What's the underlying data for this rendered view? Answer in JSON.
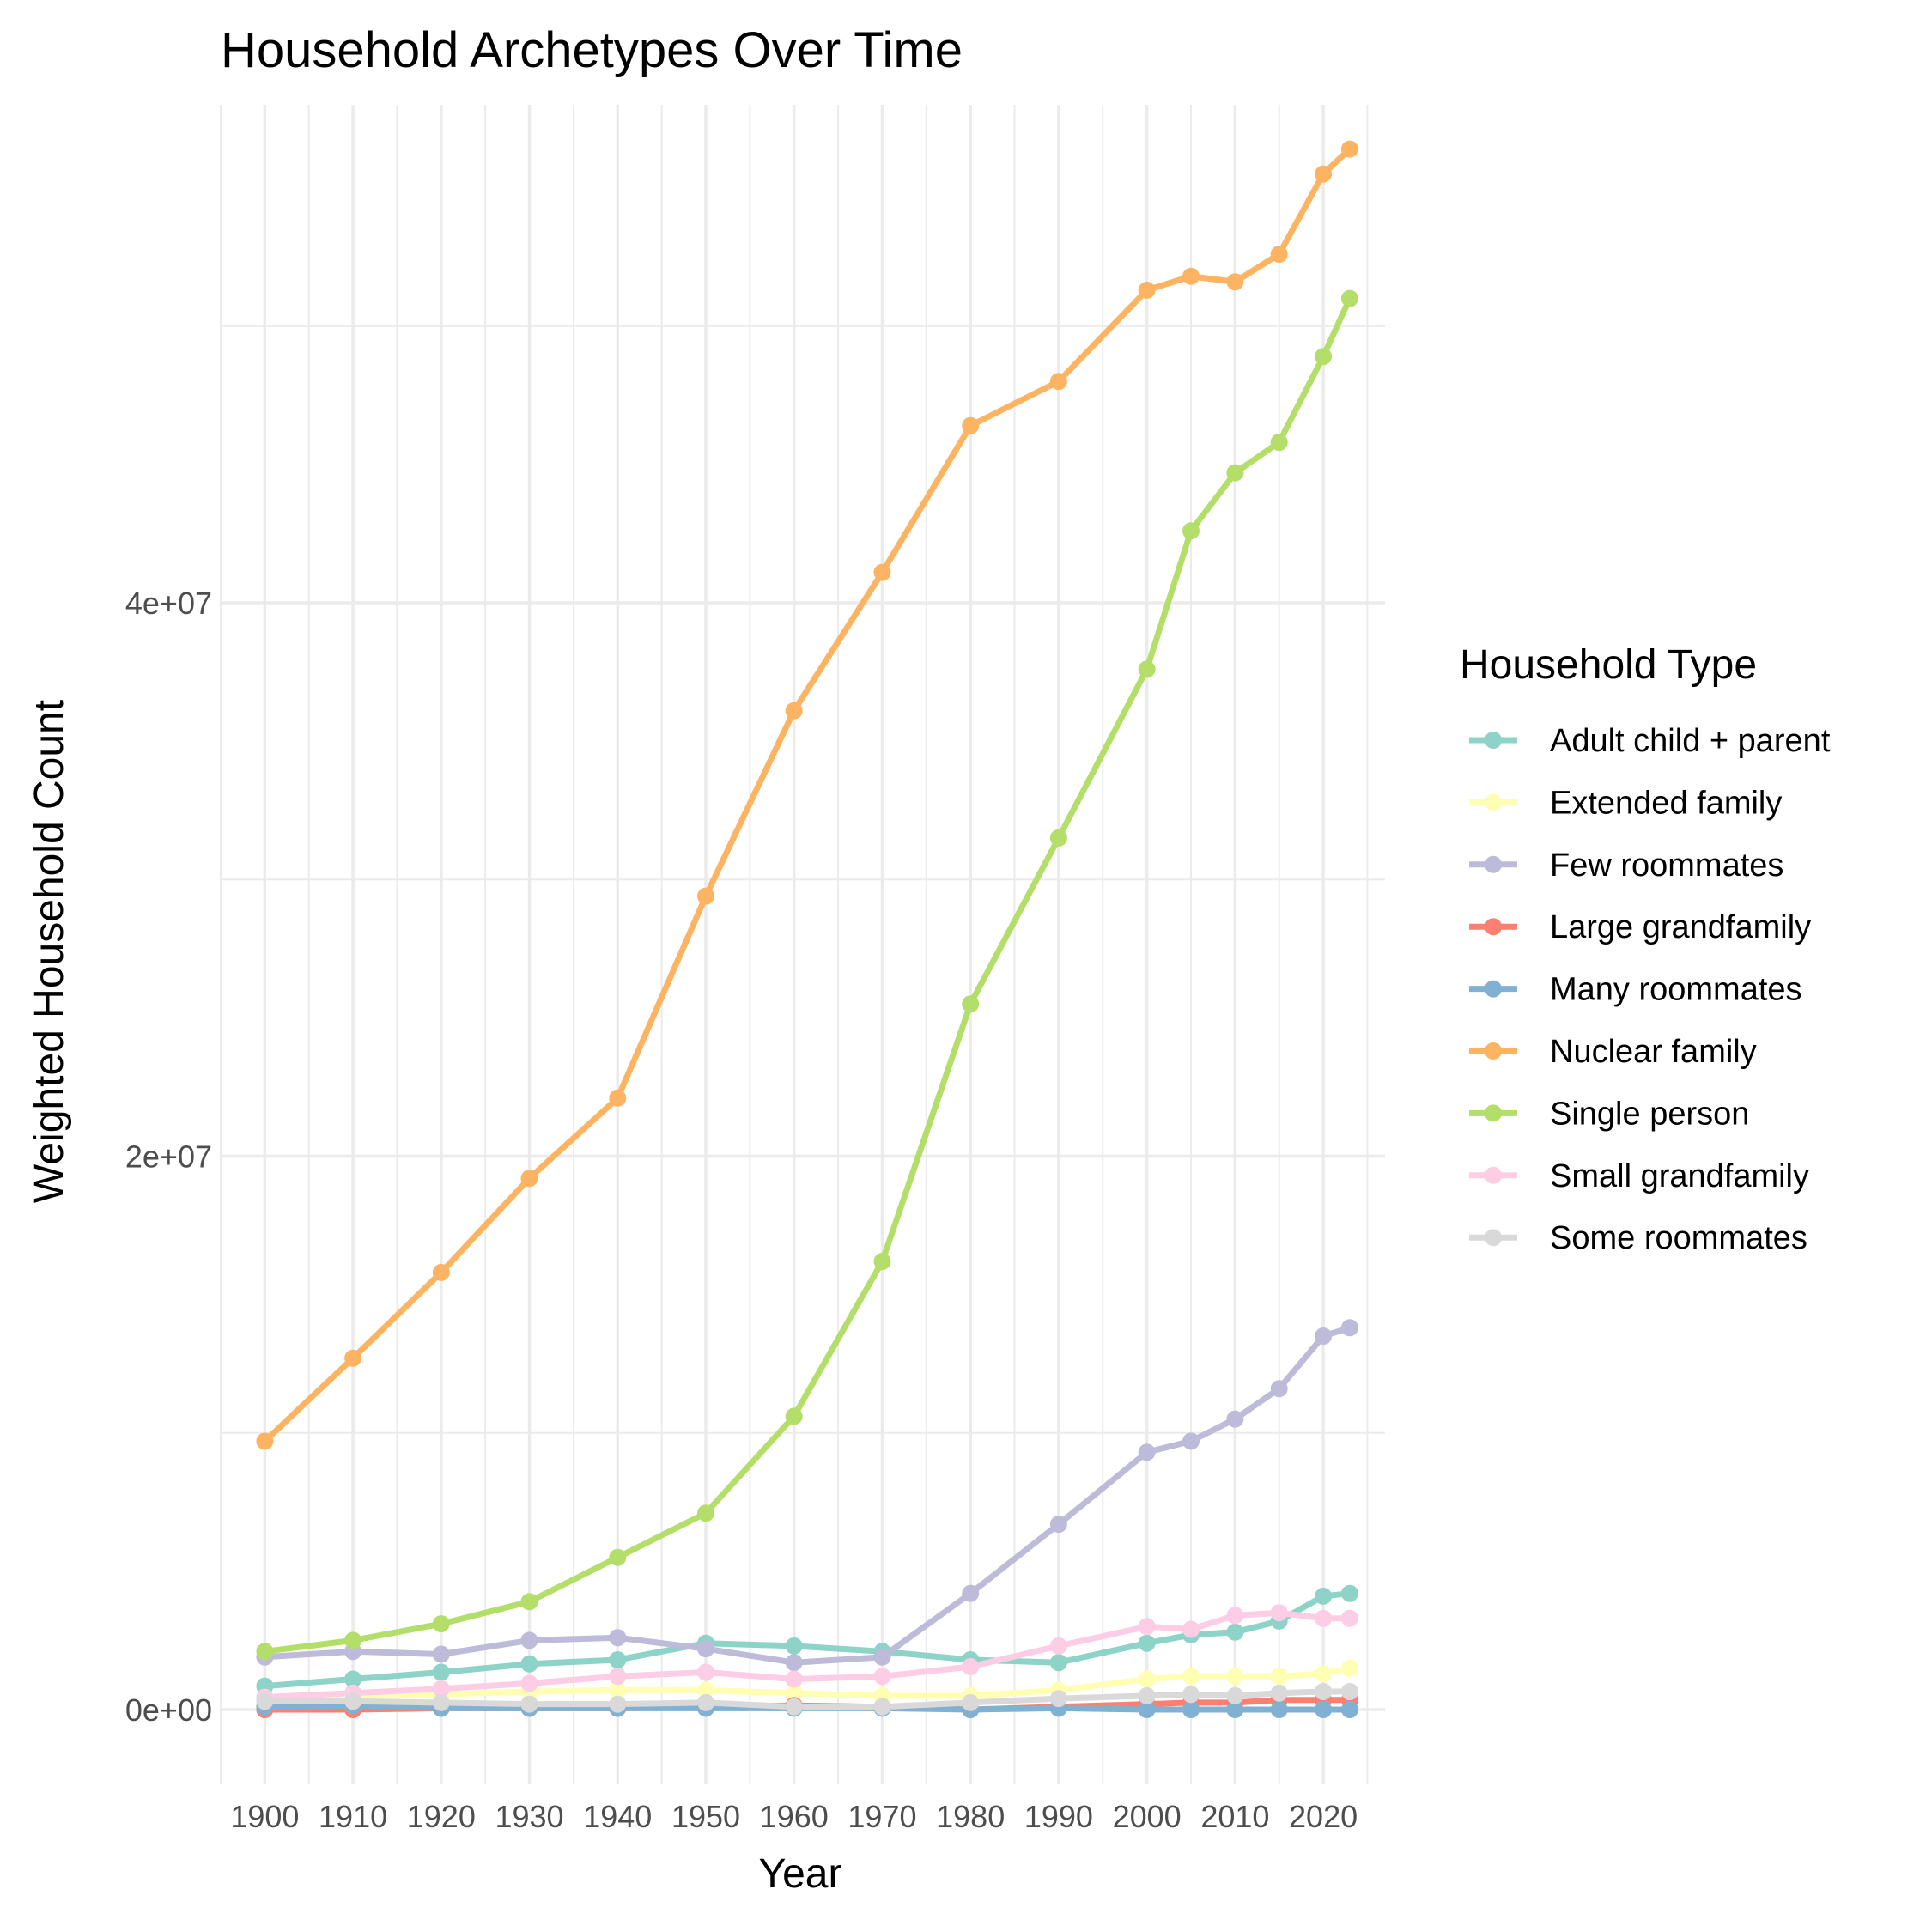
{
  "chart_data": {
    "type": "line",
    "title": "Household Archetypes Over Time",
    "xlabel": "Year",
    "ylabel": "Weighted Household Count",
    "xlim": [
      1895,
      2027
    ],
    "ylim": [
      -2700000,
      58000000
    ],
    "x_ticks": [
      1900,
      1910,
      1920,
      1930,
      1940,
      1950,
      1960,
      1970,
      1980,
      1990,
      2000,
      2010,
      2020
    ],
    "x_tick_labels": [
      "1900",
      "1910",
      "1920",
      "1930",
      "1940",
      "1950",
      "1960",
      "1970",
      "1980",
      "1990",
      "2000",
      "2010",
      "2020"
    ],
    "y_ticks": [
      0,
      20000000,
      40000000
    ],
    "y_tick_labels": [
      "0e+00",
      "2e+07",
      "4e+07"
    ],
    "grid": true,
    "legend": {
      "title": "Household Type",
      "position": "right"
    },
    "x": [
      1900,
      1910,
      1920,
      1930,
      1940,
      1950,
      1960,
      1970,
      1980,
      1990,
      2000,
      2005,
      2010,
      2015,
      2020,
      2023
    ],
    "series": [
      {
        "name": "Adult child + parent",
        "color": "#8dd3c7",
        "points": [
          [
            1900,
            850000
          ],
          [
            1910,
            1100000
          ],
          [
            1920,
            1350000
          ],
          [
            1930,
            1650000
          ],
          [
            1940,
            1800000
          ],
          [
            1950,
            2400000
          ],
          [
            1960,
            2300000
          ],
          [
            1970,
            2100000
          ],
          [
            1980,
            1800000
          ],
          [
            1990,
            1700000
          ],
          [
            2000,
            2400000
          ],
          [
            2005,
            2700000
          ],
          [
            2010,
            2800000
          ],
          [
            2015,
            3200000
          ],
          [
            2020,
            4100000
          ],
          [
            2023,
            4200000
          ]
        ]
      },
      {
        "name": "Extended family",
        "color": "#ffffb3",
        "points": [
          [
            1900,
            400000
          ],
          [
            1910,
            500000
          ],
          [
            1920,
            550000
          ],
          [
            1930,
            650000
          ],
          [
            1940,
            700000
          ],
          [
            1950,
            700000
          ],
          [
            1960,
            600000
          ],
          [
            1970,
            500000
          ],
          [
            1980,
            500000
          ],
          [
            1990,
            700000
          ],
          [
            2000,
            1100000
          ],
          [
            2005,
            1200000
          ],
          [
            2010,
            1200000
          ],
          [
            2015,
            1200000
          ],
          [
            2020,
            1300000
          ],
          [
            2023,
            1500000
          ]
        ]
      },
      {
        "name": "Few roommates",
        "color": "#bebada",
        "points": [
          [
            1900,
            1900000
          ],
          [
            1910,
            2100000
          ],
          [
            1920,
            2000000
          ],
          [
            1930,
            2500000
          ],
          [
            1940,
            2600000
          ],
          [
            1950,
            2200000
          ],
          [
            1960,
            1700000
          ],
          [
            1970,
            1900000
          ],
          [
            1980,
            4200000
          ],
          [
            1990,
            6700000
          ],
          [
            2000,
            9300000
          ],
          [
            2005,
            9700000
          ],
          [
            2010,
            10500000
          ],
          [
            2015,
            11600000
          ],
          [
            2020,
            13500000
          ],
          [
            2023,
            13800000
          ]
        ]
      },
      {
        "name": "Large grandfamily",
        "color": "#fb8072",
        "points": [
          [
            1900,
            0
          ],
          [
            1910,
            0
          ],
          [
            1920,
            50000
          ],
          [
            1930,
            50000
          ],
          [
            1940,
            50000
          ],
          [
            1950,
            100000
          ],
          [
            1960,
            150000
          ],
          [
            1970,
            100000
          ],
          [
            1980,
            0
          ],
          [
            1990,
            100000
          ],
          [
            2000,
            200000
          ],
          [
            2005,
            250000
          ],
          [
            2010,
            250000
          ],
          [
            2015,
            350000
          ],
          [
            2020,
            350000
          ],
          [
            2023,
            350000
          ]
        ]
      },
      {
        "name": "Many roommates",
        "color": "#80b1d3",
        "points": [
          [
            1900,
            100000
          ],
          [
            1910,
            150000
          ],
          [
            1920,
            50000
          ],
          [
            1930,
            50000
          ],
          [
            1940,
            50000
          ],
          [
            1950,
            50000
          ],
          [
            1960,
            50000
          ],
          [
            1970,
            50000
          ],
          [
            1980,
            0
          ],
          [
            1990,
            50000
          ],
          [
            2000,
            0
          ],
          [
            2005,
            0
          ],
          [
            2010,
            0
          ],
          [
            2015,
            0
          ],
          [
            2020,
            0
          ],
          [
            2023,
            0
          ]
        ]
      },
      {
        "name": "Nuclear family",
        "color": "#fdb462",
        "points": [
          [
            1900,
            9700000
          ],
          [
            1910,
            12700000
          ],
          [
            1920,
            15800000
          ],
          [
            1930,
            19200000
          ],
          [
            1940,
            22100000
          ],
          [
            1950,
            29400000
          ],
          [
            1960,
            36100000
          ],
          [
            1970,
            41100000
          ],
          [
            1980,
            46400000
          ],
          [
            1990,
            48000000
          ],
          [
            2000,
            51300000
          ],
          [
            2005,
            51800000
          ],
          [
            2010,
            51600000
          ],
          [
            2015,
            52600000
          ],
          [
            2020,
            55500000
          ],
          [
            2023,
            56400000
          ]
        ]
      },
      {
        "name": "Single person",
        "color": "#b3de69",
        "points": [
          [
            1900,
            2100000
          ],
          [
            1910,
            2500000
          ],
          [
            1920,
            3100000
          ],
          [
            1930,
            3900000
          ],
          [
            1940,
            5500000
          ],
          [
            1950,
            7100000
          ],
          [
            1960,
            10600000
          ],
          [
            1970,
            16200000
          ],
          [
            1980,
            25500000
          ],
          [
            1990,
            31500000
          ],
          [
            2000,
            37600000
          ],
          [
            2005,
            42600000
          ],
          [
            2010,
            44700000
          ],
          [
            2015,
            45800000
          ],
          [
            2020,
            48900000
          ],
          [
            2023,
            51000000
          ]
        ]
      },
      {
        "name": "Small grandfamily",
        "color": "#fccde5",
        "points": [
          [
            1900,
            450000
          ],
          [
            1910,
            600000
          ],
          [
            1920,
            750000
          ],
          [
            1930,
            950000
          ],
          [
            1940,
            1200000
          ],
          [
            1950,
            1350000
          ],
          [
            1960,
            1100000
          ],
          [
            1970,
            1200000
          ],
          [
            1980,
            1550000
          ],
          [
            1990,
            2300000
          ],
          [
            2000,
            3000000
          ],
          [
            2005,
            2900000
          ],
          [
            2010,
            3400000
          ],
          [
            2015,
            3500000
          ],
          [
            2020,
            3300000
          ],
          [
            2023,
            3300000
          ]
        ]
      },
      {
        "name": "Some roommates",
        "color": "#d9d9d9",
        "points": [
          [
            1900,
            300000
          ],
          [
            1910,
            300000
          ],
          [
            1920,
            250000
          ],
          [
            1930,
            200000
          ],
          [
            1940,
            200000
          ],
          [
            1950,
            250000
          ],
          [
            1960,
            100000
          ],
          [
            1970,
            100000
          ],
          [
            1980,
            250000
          ],
          [
            1990,
            400000
          ],
          [
            2000,
            500000
          ],
          [
            2005,
            550000
          ],
          [
            2010,
            500000
          ],
          [
            2015,
            600000
          ],
          [
            2020,
            650000
          ],
          [
            2023,
            650000
          ]
        ]
      }
    ]
  }
}
